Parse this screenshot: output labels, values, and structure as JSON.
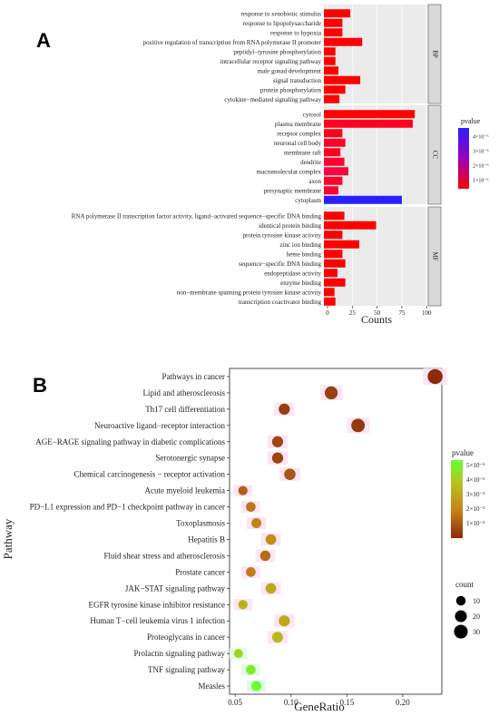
{
  "chart_data": [
    {
      "panel": "A",
      "type": "bar",
      "orientation": "horizontal",
      "xlabel": "Counts",
      "xticks": [
        0,
        25,
        50,
        75,
        100
      ],
      "xlim": [
        0,
        100
      ],
      "legend": {
        "title": "pvalue",
        "ticks": [
          "4×10⁻⁶",
          "3×10⁻⁶",
          "2×10⁻⁶",
          "1×10⁻⁶"
        ],
        "colors": [
          "#ff0000",
          "#2a1fff"
        ]
      },
      "facets": [
        {
          "name": "BP",
          "categories": [
            "response to xenobiotic stimulus",
            "response to lipopolysaccharide",
            "response to hypoxia",
            "positive regulation of transcription from RNA polymerase II promoter",
            "peptidyl−tyrosine phosphorylation",
            "intracellular receptor signaling pathway",
            "male gonad development",
            "signal transduction",
            "protein phosphorylation",
            "cytokine−mediated signaling pathway"
          ],
          "values": [
            23,
            15,
            15,
            35,
            8,
            8,
            11,
            33,
            18,
            12
          ],
          "colors": [
            "#ff0000",
            "#ff0000",
            "#ff0000",
            "#ff0000",
            "#ff0000",
            "#ff0000",
            "#ff0000",
            "#ff0000",
            "#ff0000",
            "#ff0000"
          ]
        },
        {
          "name": "CC",
          "categories": [
            "cytosol",
            "plasma membrane",
            "receptor complex",
            "neuronal cell body",
            "membrane raft",
            "dendrite",
            "macromolecular complex",
            "axon",
            "presynaptic membrane",
            "cytoplasm"
          ],
          "values": [
            88,
            86,
            15,
            18,
            13,
            17,
            21,
            15,
            11,
            75
          ],
          "colors": [
            "#ff0000",
            "#ff0020",
            "#ff0018",
            "#ff0028",
            "#ff0020",
            "#ff0030",
            "#ff0040",
            "#ff0028",
            "#ff0030",
            "#2a1fff"
          ]
        },
        {
          "name": "MF",
          "categories": [
            "RNA polymerase II transcription factor activity, ligand−activated sequence−specific DNA binding",
            "identical protein binding",
            "protein tyrosine kinase activity",
            "zinc ion binding",
            "heme binding",
            "sequence−specific DNA binding",
            "endopeptidase activity",
            "enzyme binding",
            "non−membrane spanning protein tyrosine kinase activity",
            "transcription coactivator binding"
          ],
          "values": [
            17,
            49,
            15,
            32,
            15,
            18,
            10,
            18,
            7,
            8
          ],
          "colors": [
            "#ff0000",
            "#ff0000",
            "#ff0000",
            "#ff0000",
            "#ff0000",
            "#ff0000",
            "#ff0000",
            "#ff0000",
            "#ff0000",
            "#ff0000"
          ]
        }
      ]
    },
    {
      "panel": "B",
      "type": "scatter",
      "xlabel": "GeneRatio",
      "ylabel": "Pathway",
      "xticks": [
        0.05,
        0.1,
        0.15,
        0.2
      ],
      "xtick_labels": [
        "0.05",
        "0.10",
        "0.15",
        "0.20"
      ],
      "xlim": [
        0.045,
        0.235
      ],
      "color_legend": {
        "title": "pvalue",
        "ticks": [
          "5×10⁻⁵",
          "4×10⁻⁵",
          "3×10⁻⁵",
          "2×10⁻⁵",
          "1×10⁻⁵"
        ]
      },
      "size_legend": {
        "title": "count",
        "values": [
          10,
          20,
          30
        ]
      },
      "points": [
        {
          "pathway": "Pathways in cancer",
          "x": 0.229,
          "count": 33,
          "pvalue": 2e-07
        },
        {
          "pathway": "Lipid and atherosclerosis",
          "x": 0.136,
          "count": 22,
          "pvalue": 4e-06
        },
        {
          "pathway": "Th17 cell differentiation",
          "x": 0.094,
          "count": 14,
          "pvalue": 4e-06
        },
        {
          "pathway": "Neuroactive ligand−receptor interaction",
          "x": 0.16,
          "count": 25,
          "pvalue": 3e-06
        },
        {
          "pathway": "AGE−RAGE signaling pathway in diabetic complications",
          "x": 0.088,
          "count": 14,
          "pvalue": 6e-06
        },
        {
          "pathway": "Serotonergic synapse",
          "x": 0.088,
          "count": 14,
          "pvalue": 5e-06
        },
        {
          "pathway": "Chemical carcinogenesis − receptor activation",
          "x": 0.099,
          "count": 15,
          "pvalue": 9e-06
        },
        {
          "pathway": "Acute myeloid leukemia",
          "x": 0.057,
          "count": 8,
          "pvalue": 1.1e-05
        },
        {
          "pathway": "PD−L1 expression and PD−1 checkpoint pathway in cancer",
          "x": 0.064,
          "count": 9,
          "pvalue": 1.5e-05
        },
        {
          "pathway": "Toxoplasmosis",
          "x": 0.069,
          "count": 10,
          "pvalue": 1.8e-05
        },
        {
          "pathway": "Hepatitis B",
          "x": 0.082,
          "count": 12,
          "pvalue": 2.1e-05
        },
        {
          "pathway": "Fluid shear stress and atherosclerosis",
          "x": 0.077,
          "count": 11,
          "pvalue": 1.3e-05
        },
        {
          "pathway": "Prostate cancer",
          "x": 0.064,
          "count": 9,
          "pvalue": 1.6e-05
        },
        {
          "pathway": "JAK−STAT signaling pathway",
          "x": 0.082,
          "count": 12,
          "pvalue": 2.8e-05
        },
        {
          "pathway": "EGFR tyrosine kinase inhibitor resistance",
          "x": 0.057,
          "count": 8,
          "pvalue": 3e-05
        },
        {
          "pathway": "Human T−cell leukemia virus 1 infection",
          "x": 0.094,
          "count": 14,
          "pvalue": 2.8e-05
        },
        {
          "pathway": "Proteoglycans in cancer",
          "x": 0.088,
          "count": 13,
          "pvalue": 3.2e-05
        },
        {
          "pathway": "Prolactin signaling pathway",
          "x": 0.053,
          "count": 7,
          "pvalue": 4e-05
        },
        {
          "pathway": "TNF signaling pathway",
          "x": 0.064,
          "count": 9,
          "pvalue": 4.6e-05
        },
        {
          "pathway": "Measles",
          "x": 0.069,
          "count": 10,
          "pvalue": 5e-05
        }
      ]
    }
  ]
}
